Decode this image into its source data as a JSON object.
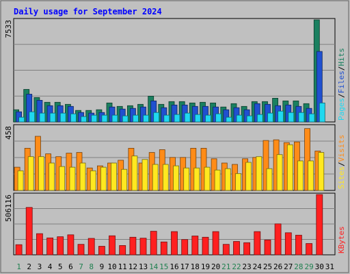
{
  "chart_data": {
    "type": "bar",
    "title": "Daily usage for September 2024",
    "days": [
      "1",
      "2",
      "3",
      "4",
      "5",
      "6",
      "7",
      "8",
      "9",
      "10",
      "11",
      "12",
      "13",
      "14",
      "15",
      "16",
      "17",
      "18",
      "19",
      "20",
      "21",
      "22",
      "23",
      "24",
      "25",
      "26",
      "27",
      "28",
      "29",
      "30",
      "31"
    ],
    "weekend_days": [
      1,
      7,
      8,
      14,
      15,
      21,
      22,
      28,
      29
    ],
    "panels": [
      {
        "max_label": "7533",
        "ymax": 7533,
        "side_labels": [
          "Pages",
          "Files",
          "Hits"
        ],
        "series": [
          {
            "name": "Hits",
            "color": "#1a8060",
            "values": [
              900,
              2400,
              1800,
              1450,
              1450,
              1300,
              850,
              850,
              900,
              1400,
              1150,
              1200,
              1300,
              1900,
              1300,
              1500,
              1500,
              1400,
              1450,
              1400,
              1100,
              1350,
              1150,
              1500,
              1500,
              1750,
              1550,
              1550,
              1350,
              7533,
              0
            ]
          },
          {
            "name": "Files",
            "color": "#2050d0",
            "values": [
              750,
              2050,
              1600,
              1200,
              1200,
              1150,
              700,
              650,
              700,
              1100,
              950,
              1000,
              1100,
              1550,
              1050,
              1250,
              1250,
              1150,
              1150,
              1100,
              900,
              1050,
              900,
              1350,
              1300,
              1200,
              1250,
              1150,
              1000,
              5200,
              0
            ]
          },
          {
            "name": "Pages",
            "color": "#20d8f0",
            "values": [
              350,
              750,
              650,
              650,
              650,
              600,
              400,
              500,
              500,
              500,
              450,
              500,
              500,
              700,
              500,
              550,
              650,
              550,
              500,
              600,
              350,
              500,
              450,
              550,
              650,
              800,
              700,
              700,
              600,
              1400,
              0
            ]
          }
        ]
      },
      {
        "max_label": "458",
        "ymax": 458,
        "side_labels": [
          "Sites",
          "Visits"
        ],
        "series": [
          {
            "name": "Visits",
            "color": "#ff8c18",
            "values": [
              165,
              300,
              385,
              260,
              240,
              265,
              270,
              160,
              175,
              195,
              215,
              300,
              195,
              270,
              290,
              235,
              235,
              300,
              300,
              225,
              195,
              185,
              225,
              235,
              355,
              360,
              340,
              345,
              440,
              280,
              0
            ]
          },
          {
            "name": "Sites",
            "color": "#ffe820",
            "values": [
              140,
              240,
              240,
              195,
              170,
              165,
              195,
              140,
              165,
              195,
              150,
              245,
              220,
              185,
              185,
              175,
              160,
              160,
              165,
              145,
              155,
              120,
              200,
              240,
              155,
              255,
              325,
              210,
              210,
              270,
              0
            ]
          }
        ]
      },
      {
        "max_label": "506116",
        "ymax": 506116,
        "side_labels": [
          "KBytes"
        ],
        "series": [
          {
            "name": "KBytes",
            "color": "#ff2020",
            "values": [
              85000,
              398000,
              178000,
              142000,
              152000,
              168000,
              88000,
              138000,
              72000,
              160000,
              78000,
              148000,
              140000,
              198000,
              108000,
              195000,
              128000,
              158000,
              148000,
              195000,
              88000,
              112000,
              102000,
              195000,
              125000,
              260000,
              185000,
              165000,
              95000,
              506116,
              0
            ]
          }
        ]
      }
    ]
  }
}
